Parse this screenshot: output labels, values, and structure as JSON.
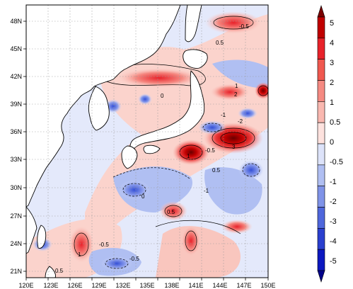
{
  "map": {
    "x_ticks": [
      "120E",
      "123E",
      "126E",
      "129E",
      "132E",
      "135E",
      "138E",
      "141E",
      "144E",
      "147E",
      "150E"
    ],
    "y_ticks": [
      "48N",
      "45N",
      "42N",
      "39N",
      "36N",
      "33N",
      "30N",
      "27N",
      "24N",
      "21N"
    ],
    "contour_labels": [
      "-0.5",
      "0.5",
      "1",
      "-1",
      "0",
      "2",
      "-2",
      "3",
      "-0.5",
      "0.5",
      "1",
      "-1",
      "0.5",
      "-0.5",
      "0",
      "1",
      "-0.5",
      "0.5"
    ]
  },
  "colorbar": {
    "labels": [
      "5",
      "4",
      "3",
      "2",
      "1",
      "0.5",
      "0",
      "-0.5",
      "-1",
      "-2",
      "-3",
      "-4",
      "-5"
    ],
    "colors": [
      "#7a0000",
      "#c00000",
      "#e8222a",
      "#f0584f",
      "#f58a82",
      "#f9b8b0",
      "#fde2de",
      "#dde3f9",
      "#b0bff2",
      "#7f93e8",
      "#4f67dc",
      "#2a3fcf",
      "#0c18c0",
      "#00008a"
    ]
  }
}
